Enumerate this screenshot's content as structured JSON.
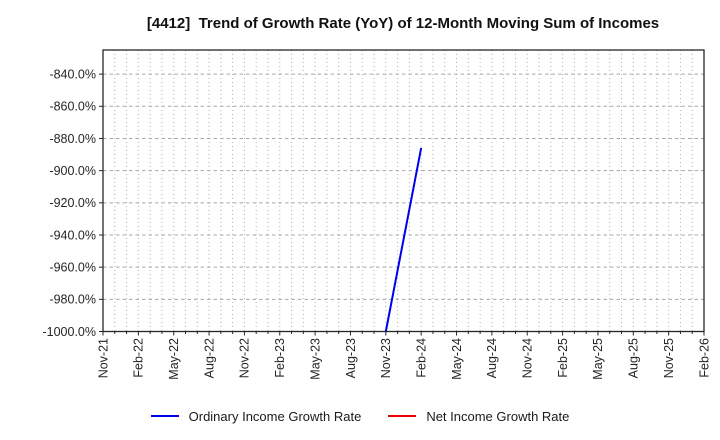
{
  "chart_data": {
    "type": "line",
    "title": "[4412]  Trend of Growth Rate (YoY) of 12-Month Moving Sum of Incomes",
    "xlabel": "",
    "ylabel": "",
    "ylim": [
      -1000,
      -825
    ],
    "x_month_span": 51,
    "grid": true,
    "legend_position": "bottom",
    "x_ticks": [
      {
        "label": "Nov-21",
        "month": 0
      },
      {
        "label": "Feb-22",
        "month": 3
      },
      {
        "label": "May-22",
        "month": 6
      },
      {
        "label": "Aug-22",
        "month": 9
      },
      {
        "label": "Nov-22",
        "month": 12
      },
      {
        "label": "Feb-23",
        "month": 15
      },
      {
        "label": "May-23",
        "month": 18
      },
      {
        "label": "Aug-23",
        "month": 21
      },
      {
        "label": "Nov-23",
        "month": 24
      },
      {
        "label": "Feb-24",
        "month": 27
      },
      {
        "label": "May-24",
        "month": 30
      },
      {
        "label": "Aug-24",
        "month": 33
      },
      {
        "label": "Nov-24",
        "month": 36
      },
      {
        "label": "Feb-25",
        "month": 39
      },
      {
        "label": "May-25",
        "month": 42
      },
      {
        "label": "Aug-25",
        "month": 45
      },
      {
        "label": "Nov-25",
        "month": 48
      },
      {
        "label": "Feb-26",
        "month": 51
      }
    ],
    "y_ticks": [
      {
        "label": "-840.0%",
        "value": -840
      },
      {
        "label": "-860.0%",
        "value": -860
      },
      {
        "label": "-880.0%",
        "value": -880
      },
      {
        "label": "-900.0%",
        "value": -900
      },
      {
        "label": "-920.0%",
        "value": -920
      },
      {
        "label": "-940.0%",
        "value": -940
      },
      {
        "label": "-960.0%",
        "value": -960
      },
      {
        "label": "-980.0%",
        "value": -980
      },
      {
        "label": "-1000.0%",
        "value": -1000
      }
    ],
    "series": [
      {
        "name": "Ordinary Income Growth Rate",
        "color": "#0000ee",
        "points": [
          {
            "x_label": "Nov-23",
            "month": 24,
            "value": -1000.0
          },
          {
            "x_label": "Feb-24",
            "month": 27,
            "value": -885.9
          }
        ]
      },
      {
        "name": "Net Income Growth Rate",
        "color": "#ee0000",
        "points": []
      }
    ]
  }
}
